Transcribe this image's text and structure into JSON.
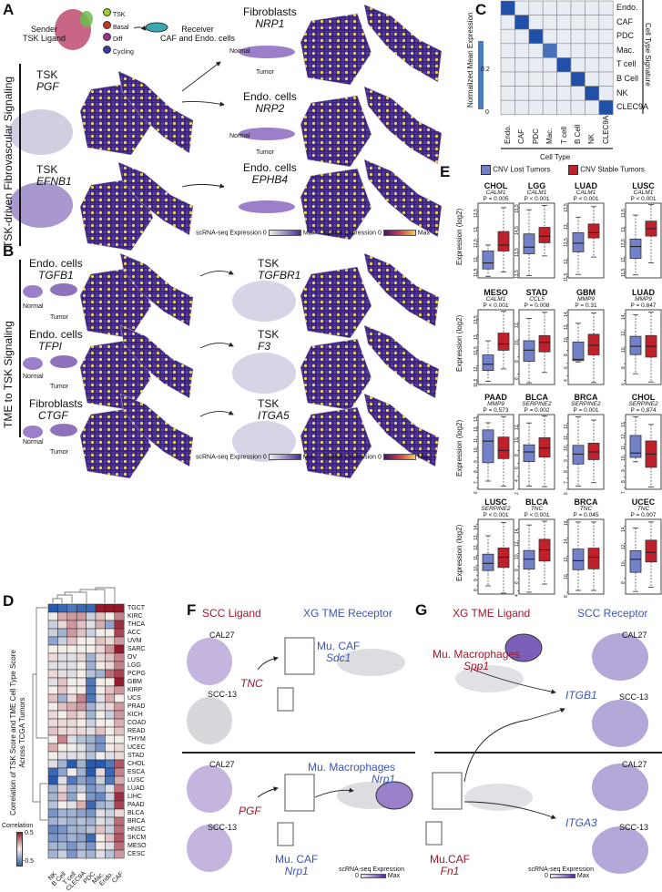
{
  "colors": {
    "ligand_red": "#a0182a",
    "receptor_blue": "#3c55b8",
    "cnv_lost": "#7381c9",
    "cnv_stable": "#c0202a",
    "tissue_purple": "#3b2380",
    "spot_yellow": "#e8d456"
  },
  "panelA": {
    "letter": "A",
    "sender": "Sender\nTSK Ligand",
    "sender_line1": "Sender",
    "sender_line2": "TSK Ligand",
    "legend": [
      {
        "label": "TSK",
        "color": "#9acd32"
      },
      {
        "label": "Basal",
        "color": "#c0392b"
      },
      {
        "label": "Diff",
        "color": "#a0308a"
      },
      {
        "label": "Cycling",
        "color": "#3a3aa0"
      }
    ],
    "receiver_line1": "Receiver",
    "receiver_line2": "CAF and Endo. cells",
    "side_label": "TSK-driven Fibrovascular Signaling",
    "rows": [
      {
        "ligand_cell": "TSK",
        "ligand_gene": "PGF",
        "receptor_cell": "Fibroblasts",
        "receptor_gene": "NRP1"
      },
      {
        "receptor_cell": "Endo. cells",
        "receptor_gene": "NRP2"
      },
      {
        "ligand_cell": "TSK",
        "ligand_gene": "EFNB1",
        "receptor_cell": "Endo. cells",
        "receptor_gene": "EPHB4"
      }
    ],
    "normal": "Normal",
    "tumor": "Tumor",
    "legend_sc": "scRNA-seq Expression",
    "legend_sp": "Spatial Expression",
    "min": "0",
    "max": "Max"
  },
  "panelB": {
    "letter": "B",
    "side_label": "TME to TSK Signaling",
    "rows": [
      {
        "ligand_cell": "Endo. cells",
        "ligand_gene": "TGFB1",
        "receptor_cell": "TSK",
        "receptor_gene": "TGFBR1"
      },
      {
        "ligand_cell": "Endo. cells",
        "ligand_gene": "TFPI",
        "receptor_cell": "TSK",
        "receptor_gene": "F3"
      },
      {
        "ligand_cell": "Fibroblasts",
        "ligand_gene": "CTGF",
        "receptor_cell": "TSK",
        "receptor_gene": "ITGA5"
      }
    ],
    "normal": "Normal",
    "tumor": "Tumor",
    "legend_sc": "scRNA-seq Expression",
    "legend_sp": "Spatial Expression",
    "min": "0",
    "max": "Max"
  },
  "panelC": {
    "letter": "C",
    "type": "heatmap",
    "rows": [
      "Endo.",
      "CAF",
      "PDC",
      "Mac.",
      "T cell",
      "B Cell",
      "NK",
      "CLEC9A"
    ],
    "cols": [
      "Endo.",
      "CAF",
      "PDC",
      "Mac.",
      "T cell",
      "B Cell",
      "NK",
      "CLEC9A"
    ],
    "row_title": "Cell Type Signature",
    "col_title": "Cell Type",
    "colorbar_label": "Normalized Mean Expression",
    "colorbar_ticks": [
      "0.2",
      "0"
    ],
    "diagonal_values": [
      0.25,
      0.25,
      0.25,
      0.2,
      0.25,
      0.25,
      0.25,
      0.25
    ],
    "off_diagonal_value": 0.01
  },
  "chart_data": [
    {
      "panel": "D",
      "type": "heatmap",
      "ylabel": "Correlation of TSK Score and TME Cell Type Score Across TCGA Tumors",
      "ylabel_line1": "Correlation of TSK Score and TME Cell Type Score",
      "ylabel_line2": "Across TCGA Tumors",
      "legend_title": "Correlation",
      "legend_ticks": [
        "0.5",
        "-0.5"
      ],
      "range": [
        -0.5,
        0.5
      ],
      "cols": [
        "NK",
        "B Cell",
        "T cell",
        "CLEC9A",
        "PDC",
        "Mac.",
        "Endo.",
        "CAF"
      ],
      "rows": [
        "TGCT",
        "KIRC",
        "THCA",
        "ACC",
        "UVM",
        "SARC",
        "OV",
        "LGG",
        "PCPG",
        "GBM",
        "KIRP",
        "UCS",
        "PRAD",
        "KICH",
        "COAD",
        "READ",
        "THYM",
        "UCEC",
        "STAD",
        "CHOL",
        "ESCA",
        "LUSC",
        "LUAD",
        "LIHC",
        "PAAD",
        "BLCA",
        "BRCA",
        "HNSC",
        "SKCM",
        "MESO",
        "CESC"
      ],
      "values": [
        [
          -0.5,
          -0.45,
          -0.4,
          -0.45,
          -0.45,
          0.5,
          0.5,
          0.5
        ],
        [
          0,
          0.15,
          0.2,
          0.2,
          -0.1,
          0.1,
          0,
          0.25
        ],
        [
          -0.1,
          0.05,
          0.2,
          0.1,
          -0.05,
          0.15,
          -0.25,
          0.45
        ],
        [
          -0.1,
          -0.2,
          0.2,
          0.1,
          -0.1,
          0,
          0,
          0.4
        ],
        [
          -0.25,
          -0.1,
          0.1,
          0,
          0,
          0.1,
          0.05,
          0.2
        ],
        [
          0,
          0,
          0,
          0,
          0,
          0.05,
          0.2,
          0.5
        ],
        [
          0.05,
          -0.05,
          -0.05,
          0.05,
          -0.2,
          0.05,
          0.1,
          0.25
        ],
        [
          -0.05,
          -0.05,
          -0.05,
          0,
          -0.2,
          0,
          0.05,
          0.25
        ],
        [
          0.05,
          -0.05,
          -0.05,
          0,
          -0.15,
          -0.2,
          0.3,
          0.4
        ],
        [
          -0.05,
          0.1,
          0,
          0,
          -0.4,
          0,
          0,
          0.5
        ],
        [
          0,
          0.1,
          0,
          0,
          -0.4,
          0,
          0.1,
          0.2
        ],
        [
          0.1,
          -0.2,
          0.05,
          0.25,
          -0.4,
          -0.05,
          0.15,
          0
        ],
        [
          0,
          0.1,
          0.15,
          0.2,
          -0.2,
          -0.05,
          0.05,
          0.2
        ],
        [
          0.05,
          0,
          0.1,
          0.05,
          -0.2,
          0,
          -0.1,
          0.2
        ],
        [
          0.05,
          0.05,
          0.05,
          0,
          -0.1,
          0,
          0,
          0.15
        ],
        [
          0.1,
          0.05,
          0.05,
          0.05,
          -0.05,
          0.1,
          0,
          0.1
        ],
        [
          0,
          0.25,
          -0.05,
          -0.15,
          -0.2,
          -0.3,
          0,
          0
        ],
        [
          0.15,
          0,
          0,
          -0.05,
          -0.2,
          -0.3,
          0,
          0.05
        ],
        [
          0,
          -0.05,
          -0.05,
          -0.05,
          -0.15,
          0,
          -0.05,
          0.05
        ],
        [
          -0.05,
          -0.2,
          -0.5,
          -0.2,
          -0.5,
          -0.5,
          -0.4,
          0.35
        ],
        [
          -0.45,
          -0.25,
          0,
          -0.2,
          -0.5,
          0.05,
          -0.45,
          0.25
        ],
        [
          -0.5,
          -0.05,
          -0.4,
          -0.25,
          -0.35,
          -0.1,
          -0.4,
          0.15
        ],
        [
          -0.2,
          0.05,
          -0.2,
          -0.1,
          -0.3,
          -0.2,
          -0.05,
          0.3
        ],
        [
          -0.2,
          0.1,
          -0.25,
          0,
          -0.3,
          -0.35,
          -0.1,
          0.45
        ],
        [
          -0.15,
          0,
          -0.05,
          0.15,
          -0.45,
          -0.2,
          -0.15,
          0.4
        ],
        [
          -0.3,
          -0.2,
          -0.2,
          -0.25,
          -0.3,
          -0.05,
          -0.1,
          0.05
        ],
        [
          -0.2,
          -0.15,
          -0.2,
          -0.15,
          -0.2,
          -0.05,
          -0.1,
          0.3
        ],
        [
          -0.35,
          -0.3,
          -0.2,
          -0.2,
          -0.15,
          0.1,
          -0.1,
          0.3
        ],
        [
          -0.3,
          -0.25,
          -0.2,
          -0.25,
          -0.45,
          0,
          0.1,
          0.35
        ],
        [
          -0.2,
          -0.2,
          -0.3,
          -0.2,
          -0.3,
          0,
          -0.05,
          0.3
        ],
        [
          -0.2,
          -0.1,
          -0.3,
          -0.15,
          -0.2,
          -0.05,
          -0.15,
          0.2
        ]
      ],
      "dendrograms": true
    },
    {
      "panel": "E",
      "type": "box",
      "ylabel": "Expression (log2)",
      "legend": [
        {
          "name": "CNV Lost Tumors",
          "color": "#7381c9"
        },
        {
          "name": "CNV Stable Tumors",
          "color": "#c0202a"
        }
      ],
      "stat_order": [
        "min",
        "q1",
        "median",
        "q3",
        "max"
      ],
      "plots": [
        {
          "cancer": "CHOL",
          "gene": "CALM1",
          "p": "P = 0.005",
          "ylim": [
            11.3,
            13.8
          ],
          "ticks": [
            11.5,
            12.0,
            12.5,
            13.0,
            13.5
          ],
          "lost": [
            11.35,
            11.6,
            11.8,
            12.2,
            12.4
          ],
          "stable": [
            11.5,
            12.2,
            12.4,
            12.85,
            13.65
          ]
        },
        {
          "cancer": "LGG",
          "gene": "CALM1",
          "p": "P < 0.001",
          "ylim": [
            12.3,
            15.7
          ],
          "ticks": [
            12.5,
            13.5,
            14.5,
            15.5
          ],
          "lost": [
            12.4,
            13.4,
            13.7,
            14.3,
            15.4
          ],
          "stable": [
            13.3,
            13.9,
            14.2,
            14.6,
            15.6
          ]
        },
        {
          "cancer": "LUAD",
          "gene": "CALM1",
          "p": "P < 0.001",
          "ylim": [
            11.45,
            13.6
          ],
          "ticks": [
            11.5,
            12.0,
            12.5,
            13.0,
            13.5
          ],
          "lost": [
            11.55,
            12.2,
            12.45,
            12.75,
            13.2
          ],
          "stable": [
            12.05,
            12.6,
            12.75,
            13.0,
            13.5
          ]
        },
        {
          "cancer": "LUSC",
          "gene": "CALM1",
          "p": "P < 0.001",
          "ylim": [
            11.3,
            13.8
          ],
          "ticks": [
            11.5,
            12.0,
            12.5,
            13.0,
            13.5
          ],
          "lost": [
            11.4,
            11.95,
            12.35,
            12.6,
            13.4
          ],
          "stable": [
            11.8,
            12.7,
            12.95,
            13.2,
            13.75
          ]
        },
        {
          "cancer": "MESO",
          "gene": "CALM1",
          "p": "P < 0.001",
          "ylim": [
            11.4,
            13.8
          ],
          "ticks": [
            11.5,
            12.0,
            12.5,
            13.0,
            13.5
          ],
          "lost": [
            11.5,
            11.85,
            12.05,
            12.35,
            12.8
          ],
          "stable": [
            11.9,
            12.5,
            12.7,
            13.05,
            13.75
          ]
        },
        {
          "cancer": "STAD",
          "gene": "CCL5",
          "p": "P = 0.008",
          "ylim": [
            4.8,
            13.5
          ],
          "ticks": [
            6,
            8,
            10,
            12
          ],
          "lost": [
            5,
            7.5,
            8.8,
            9.9,
            12.5
          ],
          "stable": [
            6.2,
            8.6,
            9.7,
            10.5,
            13.2
          ]
        },
        {
          "cancer": "GBM",
          "gene": "MMP9",
          "p": "P = 0.31",
          "ylim": [
            2.7,
            14.3
          ],
          "ticks": [
            4,
            6,
            8,
            10,
            12,
            14
          ],
          "lost": [
            6.2,
            6.4,
            6.6,
            9.3,
            12.2
          ],
          "stable": [
            3,
            7.3,
            8.8,
            10.5,
            13.8
          ]
        },
        {
          "cancer": "LUAD",
          "gene": "MMP9",
          "p": "P = 0.847",
          "ylim": [
            5.5,
            14.5
          ],
          "ticks": [
            6,
            8,
            10,
            12,
            14
          ],
          "lost": [
            6.8,
            9.1,
            10.1,
            11.3,
            13.9
          ],
          "stable": [
            5.8,
            8.8,
            10.1,
            11.4,
            14.2
          ]
        },
        {
          "cancer": "PAAD",
          "gene": "MMP9",
          "p": "P = 0.573",
          "ylim": [
            5.9,
            13.2
          ],
          "ticks": [
            6,
            7,
            8,
            9,
            10,
            11,
            12,
            13
          ],
          "lost": [
            6.7,
            8.5,
            10.6,
            11.7,
            12.4
          ],
          "stable": [
            6.2,
            8.9,
            9.7,
            11,
            13
          ]
        },
        {
          "cancer": "BLCA",
          "gene": "SERPINE2",
          "p": "P = 0.002",
          "ylim": [
            2,
            13.6
          ],
          "ticks": [
            2,
            4,
            6,
            8,
            10,
            12
          ],
          "lost": [
            2.5,
            6.3,
            7.8,
            8.9,
            12.3
          ],
          "stable": [
            2.4,
            7,
            8.4,
            10,
            13.4
          ]
        },
        {
          "cancer": "BRCA",
          "gene": "SERPINE2",
          "p": "P = 0.001",
          "ylim": [
            6,
            12.8
          ],
          "ticks": [
            6,
            7,
            8,
            9,
            10,
            11,
            12
          ],
          "lost": [
            6.3,
            8.3,
            9.2,
            10.0,
            12.6
          ],
          "stable": [
            6.6,
            8.7,
            9.4,
            10.2,
            12.3
          ]
        },
        {
          "cancer": "CHOL",
          "gene": "SERPINE2",
          "p": "P = 0.874",
          "ylim": [
            6.9,
            13.7
          ],
          "ticks": [
            7,
            8,
            9,
            10,
            11,
            12,
            13
          ],
          "lost": [
            9.4,
            9.8,
            10.2,
            11.8,
            13.5
          ],
          "stable": [
            7.1,
            8.9,
            10.1,
            11.3,
            12.8
          ]
        },
        {
          "cancer": "LUSC",
          "gene": "SERPINE2",
          "p": "P < 0.001",
          "ylim": [
            7.2,
            14.5
          ],
          "ticks": [
            8,
            9,
            10,
            11,
            12,
            13,
            14
          ],
          "lost": [
            8.0,
            9.5,
            10.2,
            11.1,
            12.9
          ],
          "stable": [
            7.3,
            9.8,
            10.8,
            11.7,
            14.2
          ]
        },
        {
          "cancer": "BLCA",
          "gene": "TNC",
          "p": "P < 0.001",
          "ylim": [
            3.5,
            15.5
          ],
          "ticks": [
            4,
            6,
            8,
            10,
            12,
            14
          ],
          "lost": [
            3.8,
            7.5,
            9.1,
            10.5,
            14.6
          ],
          "stable": [
            5.1,
            8.8,
            10.6,
            12.3,
            15.2
          ]
        },
        {
          "cancer": "BRCA",
          "gene": "TNC",
          "p": "P = 0.045",
          "ylim": [
            7.8,
            16.1
          ],
          "ticks": [
            8,
            10,
            12,
            14,
            16
          ],
          "lost": [
            8.2,
            10.5,
            11.5,
            12.8,
            15.8
          ],
          "stable": [
            8.2,
            10.6,
            11.9,
            12.9,
            15.8
          ]
        },
        {
          "cancer": "UCEC",
          "gene": "TNC",
          "p": "P = 0.007",
          "ylim": [
            6.2,
            14.8
          ],
          "ticks": [
            8,
            10,
            12,
            14
          ],
          "lost": [
            6.5,
            8.7,
            10.2,
            11.2,
            13.8
          ],
          "stable": [
            7,
            9.9,
            11,
            12.4,
            14.5
          ]
        }
      ]
    }
  ],
  "panelD": {
    "letter": "D"
  },
  "panelE": {
    "letter": "E"
  },
  "panelF": {
    "letter": "F",
    "ligand_title": "SCC Ligand",
    "receptor_title": "XG TME Receptor",
    "top": {
      "line1": "CAL27",
      "line2": "SCC-13",
      "ligand": "TNC",
      "receptor_cell": "Mu. CAF",
      "receptor_gene": "Sdc1"
    },
    "bottom": {
      "line1": "CAL27",
      "line2": "SCC-13",
      "ligand": "PGF",
      "receptor1_cell": "Mu. Macrophages",
      "receptor1_gene": "Nrp1",
      "receptor2_cell": "Mu. CAF",
      "receptor2_gene": "Nrp1"
    },
    "legend": "scRNA-seq Expression",
    "min": "0",
    "max": "Max"
  },
  "panelG": {
    "letter": "G",
    "ligand_title": "XG TME Ligand",
    "receptor_title": "SCC Receptor",
    "top": {
      "ligand_cell": "Mu. Macrophages",
      "ligand_gene": "Spp1",
      "receptor": "ITGB1",
      "line1": "CAL27",
      "line2": "SCC-13"
    },
    "bottom": {
      "ligand_cell": "Mu.CAF",
      "ligand_gene": "Fn1",
      "receptor": "ITGA3",
      "line1": "CAL27",
      "line2": "SCC-13"
    },
    "legend": "scRNA-seq Expression",
    "min": "0",
    "max": "Max"
  }
}
